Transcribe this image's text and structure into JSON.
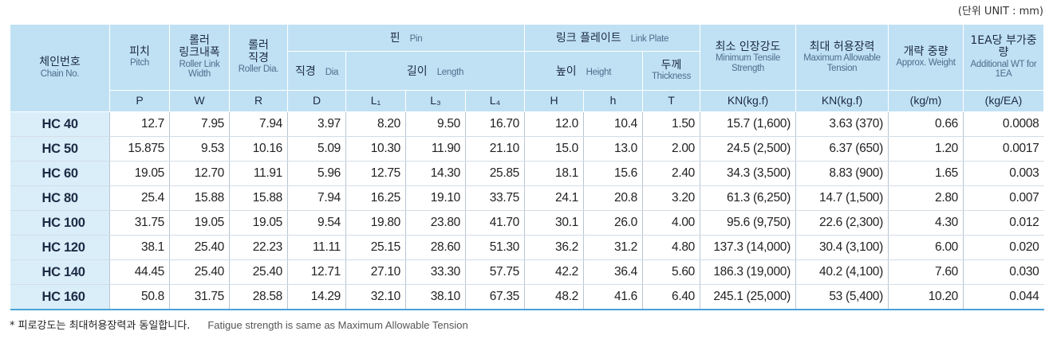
{
  "unit_note": "(단위 UNIT : mm)",
  "header": {
    "chain": {
      "ko": "체인번호",
      "en": "Chain No."
    },
    "pitch": {
      "ko": "피치",
      "en": "Pitch"
    },
    "width": {
      "ko": "롤러\n링크내폭",
      "en": "Roller Link Width"
    },
    "dia": {
      "ko": "롤러\n직경",
      "en": "Roller Dia."
    },
    "pin": {
      "ko": "핀",
      "en": "Pin"
    },
    "pin_dia": {
      "ko": "직경",
      "en": "Dia"
    },
    "length": {
      "ko": "길이",
      "en": "Length"
    },
    "plate": {
      "ko": "링크 플레이트",
      "en": "Link Plate"
    },
    "height": {
      "ko": "높이",
      "en": "Height"
    },
    "thickness": {
      "ko": "두께",
      "en": "Thickness"
    },
    "tensile": {
      "ko": "최소 인장강도",
      "en": "Minimum Tensile Strength"
    },
    "tension": {
      "ko": "최대 허용장력",
      "en": "Maximum Allowable Tension"
    },
    "weight": {
      "ko": "개략 중량",
      "en": "Approx. Weight"
    },
    "additional": {
      "ko": "1EA당 부가중량",
      "en": "Additional WT for 1EA"
    },
    "symbols": [
      "P",
      "W",
      "R",
      "D",
      "L₁",
      "L₃",
      "L₄",
      "H",
      "h",
      "T",
      "KN(kg.f)",
      "KN(kg.f)",
      "(kg/m)",
      "(kg/EA)"
    ]
  },
  "rows": [
    [
      "HC 40",
      "12.7",
      "7.95",
      "7.94",
      "3.97",
      "8.20",
      "9.50",
      "16.70",
      "12.0",
      "10.4",
      "1.50",
      "15.7 (1,600)",
      "3.63 (370)",
      "0.66",
      "0.0008"
    ],
    [
      "HC 50",
      "15.875",
      "9.53",
      "10.16",
      "5.09",
      "10.30",
      "11.90",
      "21.10",
      "15.0",
      "13.0",
      "2.00",
      "24.5 (2,500)",
      "6.37 (650)",
      "1.20",
      "0.0017"
    ],
    [
      "HC 60",
      "19.05",
      "12.70",
      "11.91",
      "5.96",
      "12.75",
      "14.30",
      "25.85",
      "18.1",
      "15.6",
      "2.40",
      "34.3 (3,500)",
      "8.83 (900)",
      "1.65",
      "0.003"
    ],
    [
      "HC 80",
      "25.4",
      "15.88",
      "15.88",
      "7.94",
      "16.25",
      "19.10",
      "33.75",
      "24.1",
      "20.8",
      "3.20",
      "61.3 (6,250)",
      "14.7 (1,500)",
      "2.80",
      "0.007"
    ],
    [
      "HC 100",
      "31.75",
      "19.05",
      "19.05",
      "9.54",
      "19.80",
      "23.80",
      "41.70",
      "30.1",
      "26.0",
      "4.00",
      "95.6 (9,750)",
      "22.6 (2,300)",
      "4.30",
      "0.012"
    ],
    [
      "HC 120",
      "38.1",
      "25.40",
      "22.23",
      "11.11",
      "25.15",
      "28.60",
      "51.30",
      "36.2",
      "31.2",
      "4.80",
      "137.3 (14,000)",
      "30.4 (3,100)",
      "6.00",
      "0.020"
    ],
    [
      "HC 140",
      "44.45",
      "25.40",
      "25.40",
      "12.71",
      "27.10",
      "33.30",
      "57.75",
      "42.2",
      "36.4",
      "5.60",
      "186.3 (19,000)",
      "40.2 (4,100)",
      "7.60",
      "0.030"
    ],
    [
      "HC 160",
      "50.8",
      "31.75",
      "28.58",
      "14.29",
      "32.10",
      "38.10",
      "67.35",
      "48.2",
      "41.6",
      "6.40",
      "245.1 (25,000)",
      "53 (5,400)",
      "10.20",
      "0.044"
    ]
  ],
  "footnote": {
    "ko": "* 피로강도는 최대허용장력과 동일합니다.",
    "en": "Fatigue strength is same as Maximum Allowable Tension"
  }
}
